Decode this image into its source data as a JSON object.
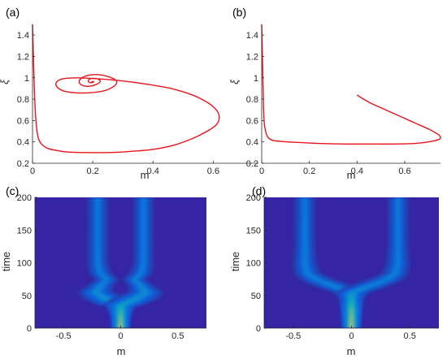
{
  "chart_data": [
    {
      "panel": "(a)",
      "type": "line",
      "xlabel": "m",
      "ylabel": "ξ",
      "xlim": [
        0,
        0.75
      ],
      "ylim": [
        0.2,
        1.5
      ],
      "xticks": [
        "0",
        "0.2",
        "0.4",
        "0.6"
      ],
      "yticks": [
        "0.2",
        "0.4",
        "0.6",
        "0.8",
        "1",
        "1.2",
        "1.4"
      ],
      "grid": false,
      "series": [
        {
          "color": "#e8141b",
          "x": [
            0.0,
            0.003,
            0.006,
            0.01,
            0.015,
            0.02,
            0.03,
            0.05,
            0.08,
            0.12,
            0.18,
            0.25,
            0.32,
            0.4,
            0.47,
            0.53,
            0.58,
            0.61,
            0.62,
            0.61,
            0.58,
            0.53,
            0.46,
            0.38,
            0.3,
            0.22,
            0.15,
            0.1,
            0.08,
            0.08,
            0.1,
            0.14,
            0.19,
            0.24,
            0.27,
            0.28,
            0.27,
            0.24,
            0.21,
            0.18,
            0.16,
            0.155,
            0.165,
            0.185,
            0.205,
            0.22,
            0.225,
            0.215,
            0.2,
            0.188,
            0.185,
            0.19,
            0.198,
            0.203,
            0.2,
            0.197,
            0.196
          ],
          "y": [
            1.5,
            1.2,
            0.9,
            0.65,
            0.5,
            0.43,
            0.38,
            0.34,
            0.32,
            0.305,
            0.3,
            0.3,
            0.31,
            0.33,
            0.37,
            0.43,
            0.5,
            0.56,
            0.63,
            0.7,
            0.77,
            0.84,
            0.9,
            0.94,
            0.97,
            0.99,
            1.0,
            0.99,
            0.96,
            0.92,
            0.88,
            0.86,
            0.86,
            0.88,
            0.92,
            0.96,
            0.99,
            1.02,
            1.03,
            1.02,
            0.99,
            0.96,
            0.93,
            0.92,
            0.93,
            0.95,
            0.97,
            0.99,
            0.995,
            0.985,
            0.97,
            0.955,
            0.955,
            0.96,
            0.965,
            0.962,
            0.96
          ]
        }
      ]
    },
    {
      "panel": "(b)",
      "type": "line",
      "xlabel": "m",
      "ylabel": "ξ",
      "xlim": [
        0,
        0.75
      ],
      "ylim": [
        0.2,
        1.5
      ],
      "xticks": [
        "0",
        "0.2",
        "0.4",
        "0.6"
      ],
      "yticks": [
        "0.2",
        "0.4",
        "0.6",
        "0.8",
        "1",
        "1.2",
        "1.4"
      ],
      "grid": false,
      "series": [
        {
          "color": "#e8141b",
          "x": [
            0.0,
            0.003,
            0.006,
            0.01,
            0.02,
            0.04,
            0.08,
            0.15,
            0.25,
            0.35,
            0.45,
            0.55,
            0.64,
            0.7,
            0.74,
            0.75,
            0.74,
            0.7,
            0.64,
            0.58,
            0.52,
            0.46,
            0.42,
            0.4
          ],
          "y": [
            1.5,
            1.2,
            0.9,
            0.6,
            0.47,
            0.42,
            0.405,
            0.395,
            0.385,
            0.38,
            0.38,
            0.38,
            0.385,
            0.4,
            0.42,
            0.44,
            0.47,
            0.52,
            0.58,
            0.64,
            0.7,
            0.76,
            0.81,
            0.84
          ]
        }
      ]
    },
    {
      "panel": "(c)",
      "type": "heatmap",
      "xlabel": "m",
      "ylabel": "time",
      "xlim": [
        -0.75,
        0.75
      ],
      "ylim": [
        0,
        200
      ],
      "xticks": [
        "-0.5",
        "0",
        "0.5"
      ],
      "yticks": [
        "0",
        "50",
        "100",
        "150",
        "200"
      ],
      "colormap": "parula",
      "background_color": "#3524a4",
      "branches": [
        {
          "t": [
            0,
            20,
            35
          ],
          "x": [
            0,
            0,
            0
          ],
          "w": [
            0.03,
            0.035,
            0.05
          ],
          "amp": [
            1.0,
            0.8,
            0.6
          ]
        },
        {
          "t": [
            35,
            45,
            55,
            65,
            75,
            85,
            100,
            120,
            150,
            200
          ],
          "x": [
            0,
            -0.12,
            -0.22,
            -0.18,
            -0.12,
            -0.18,
            -0.2,
            -0.2,
            -0.2,
            -0.2
          ],
          "w": [
            0.07,
            0.08,
            0.06,
            0.045,
            0.04,
            0.04,
            0.035,
            0.035,
            0.035,
            0.035
          ],
          "amp": [
            0.55,
            0.45,
            0.42,
            0.38,
            0.36,
            0.34,
            0.33,
            0.32,
            0.32,
            0.32
          ]
        },
        {
          "t": [
            35,
            45,
            55,
            65,
            75,
            85,
            100,
            120,
            150,
            200
          ],
          "x": [
            0,
            0.12,
            0.22,
            0.18,
            0.12,
            0.18,
            0.2,
            0.2,
            0.2,
            0.2
          ],
          "w": [
            0.07,
            0.08,
            0.06,
            0.045,
            0.04,
            0.04,
            0.035,
            0.035,
            0.035,
            0.035
          ],
          "amp": [
            0.55,
            0.45,
            0.42,
            0.38,
            0.36,
            0.34,
            0.33,
            0.32,
            0.32,
            0.32
          ]
        }
      ]
    },
    {
      "panel": "(d)",
      "type": "heatmap",
      "xlabel": "m",
      "ylabel": "time",
      "xlim": [
        -0.75,
        0.75
      ],
      "ylim": [
        0,
        200
      ],
      "xticks": [
        "-0.5",
        "0",
        "0.5"
      ],
      "yticks": [
        "0",
        "50",
        "100",
        "150",
        "200"
      ],
      "colormap": "parula",
      "background_color": "#3524a4",
      "branches": [
        {
          "t": [
            0,
            25,
            45,
            55
          ],
          "x": [
            0,
            0,
            0,
            0
          ],
          "w": [
            0.03,
            0.035,
            0.04,
            0.06
          ],
          "amp": [
            1.0,
            0.85,
            0.6,
            0.45
          ]
        },
        {
          "t": [
            55,
            65,
            75,
            85,
            100,
            130,
            160,
            200
          ],
          "x": [
            0,
            -0.15,
            -0.3,
            -0.38,
            -0.4,
            -0.4,
            -0.4,
            -0.4
          ],
          "w": [
            0.06,
            0.07,
            0.06,
            0.045,
            0.04,
            0.035,
            0.035,
            0.035
          ],
          "amp": [
            0.45,
            0.38,
            0.36,
            0.35,
            0.34,
            0.33,
            0.32,
            0.32
          ]
        },
        {
          "t": [
            55,
            65,
            75,
            85,
            100,
            130,
            160,
            200
          ],
          "x": [
            0,
            0.15,
            0.3,
            0.38,
            0.4,
            0.4,
            0.4,
            0.4
          ],
          "w": [
            0.06,
            0.07,
            0.06,
            0.045,
            0.04,
            0.035,
            0.035,
            0.035
          ],
          "amp": [
            0.45,
            0.38,
            0.36,
            0.35,
            0.34,
            0.33,
            0.32,
            0.32
          ]
        }
      ]
    }
  ]
}
